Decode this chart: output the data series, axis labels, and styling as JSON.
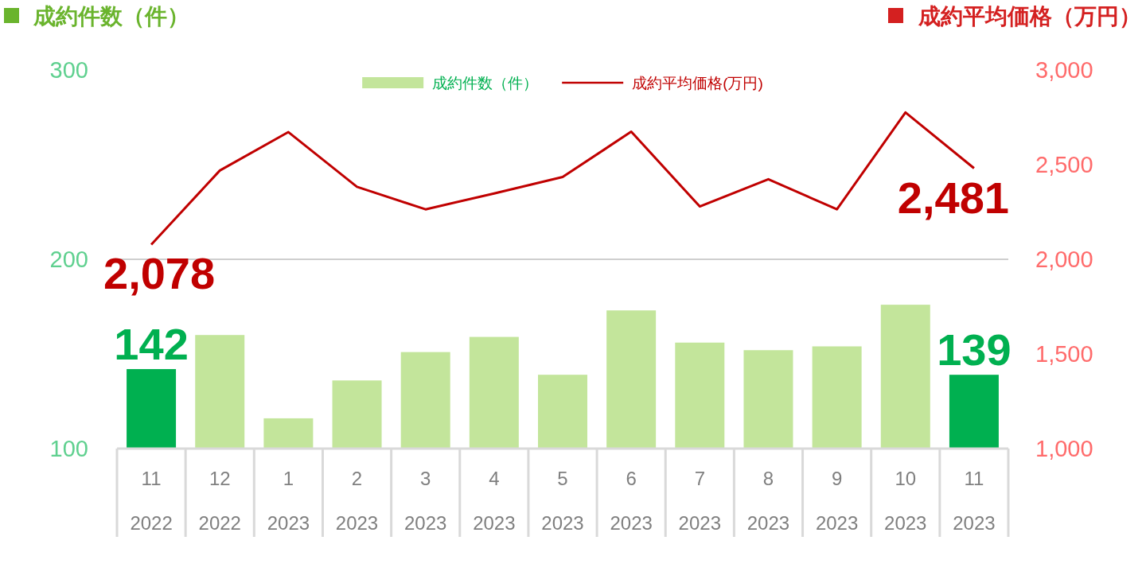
{
  "chart_data": {
    "type": "bar",
    "ylabel": "成約件数（件）",
    "y2label": "成約平均価格（万円）",
    "categories": [
      "11\n2022",
      "12\n2022",
      "1\n2023",
      "2\n2023",
      "3\n2023",
      "4\n2023",
      "5\n2023",
      "6\n2023",
      "7\n2023",
      "8\n2023",
      "9\n2023",
      "10\n2023",
      "11\n2023"
    ],
    "series": [
      {
        "name": "成約件数（件）",
        "color": "#c3e59b",
        "colors": [
          "#00b050",
          "#c3e59b",
          "#c3e59b",
          "#c3e59b",
          "#c3e59b",
          "#c3e59b",
          "#c3e59b",
          "#c3e59b",
          "#c3e59b",
          "#c3e59b",
          "#c3e59b",
          "#c3e59b",
          "#00b050"
        ],
        "values": [
          142,
          160,
          116,
          136,
          151,
          159,
          139,
          173,
          156,
          152,
          154,
          176,
          139
        ],
        "value_labels": [
          "142",
          null,
          null,
          null,
          null,
          null,
          null,
          null,
          null,
          null,
          null,
          null,
          "139"
        ]
      },
      {
        "name": "成約平均価格(万円)",
        "type": "line",
        "axis": "y2",
        "color": "#c00000",
        "values": [
          2078,
          2469,
          2672,
          2383,
          2264,
          2348,
          2435,
          2674,
          2279,
          2423,
          2264,
          2776,
          2481
        ],
        "value_labels": [
          "2,078",
          null,
          null,
          null,
          null,
          null,
          null,
          null,
          null,
          null,
          null,
          null,
          "2,481"
        ]
      }
    ],
    "ylim": [
      100,
      300
    ],
    "yticks": [
      100,
      200,
      300
    ],
    "y2lim": [
      1000,
      3000
    ],
    "y2ticks": [
      {
        "value": 1000,
        "label": "1,000"
      },
      {
        "value": 1500,
        "label": "1,500"
      },
      {
        "value": 2000,
        "label": "2,000"
      },
      {
        "value": 2500,
        "label": "2,500"
      },
      {
        "value": 3000,
        "label": "3,000"
      }
    ],
    "ref_lines": [
      {
        "axis": "y",
        "value": 200,
        "color": "#cfcfcf"
      }
    ],
    "legend": "top"
  }
}
